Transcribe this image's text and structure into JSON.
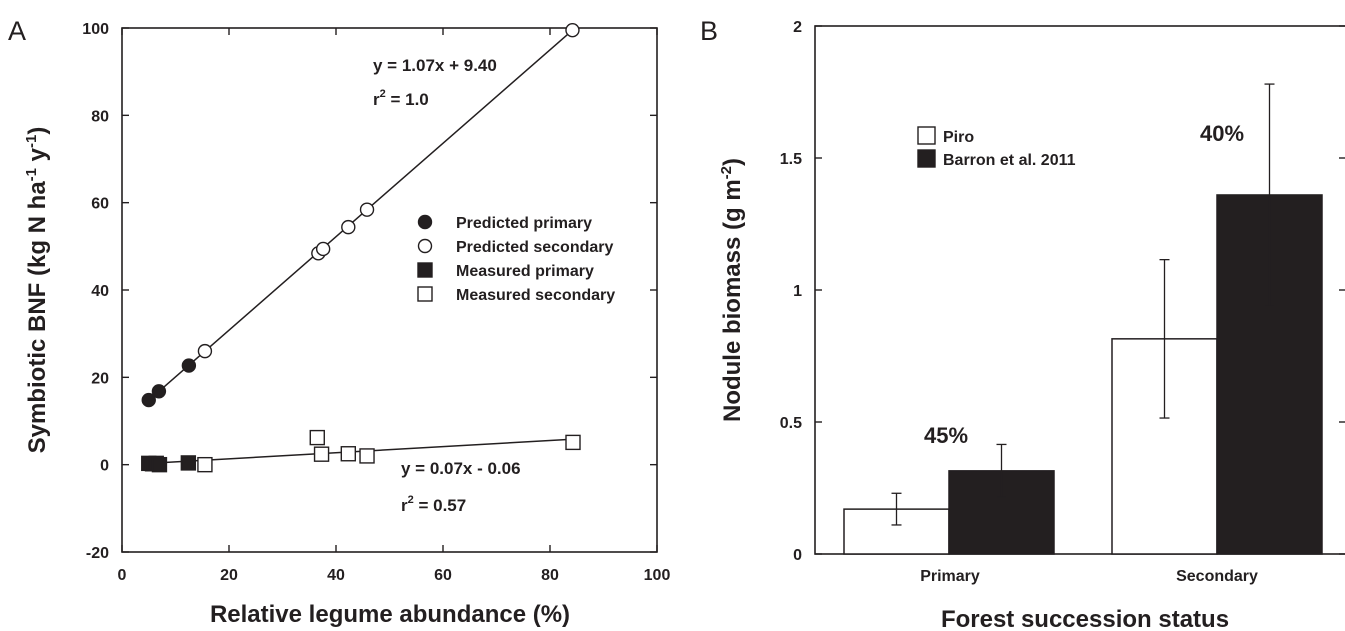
{
  "chart_data": [
    {
      "type": "scatter",
      "panel_label": "A",
      "xlabel": "Relative legume abundance (%)",
      "ylabel_parts": [
        "Symbiotic BNF (kg N ha",
        "-1",
        " y",
        "-1",
        ")"
      ],
      "xlim": [
        0,
        100
      ],
      "ylim": [
        -20,
        100
      ],
      "xticks": [
        0,
        20,
        40,
        60,
        80,
        100
      ],
      "yticks": [
        -20,
        0,
        20,
        40,
        60,
        80,
        100
      ],
      "legend_position": "center-right",
      "series": [
        {
          "name": "Predicted primary",
          "marker": "filled-circle",
          "x": [
            5.0,
            6.9,
            12.5
          ],
          "y": [
            14.8,
            16.8,
            22.7
          ]
        },
        {
          "name": "Predicted secondary",
          "marker": "open-circle",
          "x": [
            15.5,
            36.7,
            37.6,
            42.3,
            45.8,
            84.2
          ],
          "y": [
            26.0,
            48.4,
            49.4,
            54.4,
            58.4,
            99.5
          ]
        },
        {
          "name": "Measured primary",
          "marker": "filled-square",
          "x": [
            5.0,
            5.7,
            6.4,
            7.0,
            12.4
          ],
          "y": [
            0.3,
            0.2,
            0.3,
            0.0,
            0.4
          ]
        },
        {
          "name": "Measured secondary",
          "marker": "open-square",
          "x": [
            15.5,
            36.5,
            37.3,
            42.3,
            45.8,
            84.3
          ],
          "y": [
            0.0,
            6.2,
            2.4,
            2.5,
            2.0,
            5.1
          ]
        }
      ],
      "fits": [
        {
          "slope": 1.07,
          "intercept": 9.4,
          "x_range": [
            5,
            84.5
          ],
          "equation": "y = 1.07x + 9.40",
          "r2_prefix": "r",
          "r2_exp": "2",
          "r2_suffix": " = 1.0"
        },
        {
          "slope": 0.07,
          "intercept": -0.06,
          "x_range": [
            5,
            84.5
          ],
          "equation": "y = 0.07x - 0.06",
          "r2_prefix": "r",
          "r2_exp": "2",
          "r2_suffix": " = 0.57"
        }
      ]
    },
    {
      "type": "bar",
      "panel_label": "B",
      "xlabel": "Forest succession status",
      "ylabel_parts": [
        "Nodule biomass (g m",
        "-2",
        ")"
      ],
      "ylim": [
        0,
        2
      ],
      "yticks": [
        0,
        0.5,
        1,
        1.5,
        2
      ],
      "ytick_labels": [
        "0",
        "0.5",
        "1",
        "1.5",
        "2"
      ],
      "categories": [
        "Primary",
        "Secondary"
      ],
      "legend_position": "top-left",
      "series": [
        {
          "name": "Piro",
          "fill": "open",
          "values": [
            0.17,
            0.815
          ],
          "errors": [
            0.06,
            0.3
          ]
        },
        {
          "name": "Barron et al. 2011",
          "fill": "filled",
          "values": [
            0.315,
            1.36
          ],
          "errors": [
            0.1,
            0.42
          ]
        }
      ],
      "annotations": [
        "45%",
        "40%"
      ]
    }
  ]
}
